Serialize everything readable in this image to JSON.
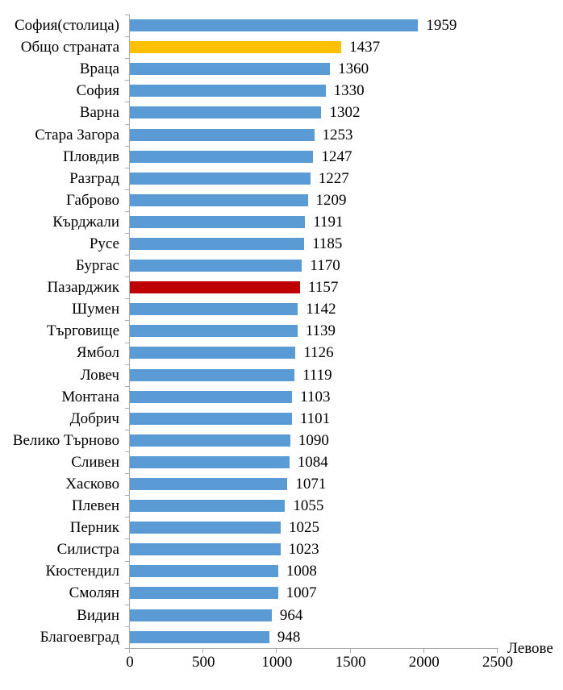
{
  "chart_data": {
    "type": "bar",
    "orientation": "horizontal",
    "title": "",
    "xlabel": "Левове",
    "ylabel": "",
    "xlim": [
      0,
      2500
    ],
    "x_ticks": [
      0,
      500,
      1000,
      1500,
      2000,
      2500
    ],
    "grid": false,
    "legend": false,
    "value_labels": true,
    "categories": [
      "София(столица)",
      "Общо страната",
      "Враца",
      "София",
      "Варна",
      "Стара Загора",
      "Пловдив",
      "Разград",
      "Габрово",
      "Кърджали",
      "Русе",
      "Бургас",
      "Пазарджик",
      "Шумен",
      "Търговище",
      "Ямбол",
      "Ловеч",
      "Монтана",
      "Добрич",
      "Велико Търново",
      "Сливен",
      "Хасково",
      "Плевен",
      "Перник",
      "Силистра",
      "Кюстендил",
      "Смолян",
      "Видин",
      "Благоевград"
    ],
    "values": [
      1959,
      1437,
      1360,
      1330,
      1302,
      1253,
      1247,
      1227,
      1209,
      1191,
      1185,
      1170,
      1157,
      1142,
      1139,
      1126,
      1119,
      1103,
      1101,
      1090,
      1084,
      1071,
      1055,
      1025,
      1023,
      1008,
      1007,
      964,
      948
    ],
    "bar_colors": [
      "#5B9BD5",
      "#FFC000",
      "#5B9BD5",
      "#5B9BD5",
      "#5B9BD5",
      "#5B9BD5",
      "#5B9BD5",
      "#5B9BD5",
      "#5B9BD5",
      "#5B9BD5",
      "#5B9BD5",
      "#5B9BD5",
      "#C00000",
      "#5B9BD5",
      "#5B9BD5",
      "#5B9BD5",
      "#5B9BD5",
      "#5B9BD5",
      "#5B9BD5",
      "#5B9BD5",
      "#5B9BD5",
      "#5B9BD5",
      "#5B9BD5",
      "#5B9BD5",
      "#5B9BD5",
      "#5B9BD5",
      "#5B9BD5",
      "#5B9BD5",
      "#5B9BD5"
    ],
    "accent_colors": {
      "default_bar": "#5B9BD5",
      "national_total_bar": "#FFC000",
      "highlighted_bar": "#C00000",
      "axis_line": "#ababab",
      "text": "#000000"
    }
  }
}
